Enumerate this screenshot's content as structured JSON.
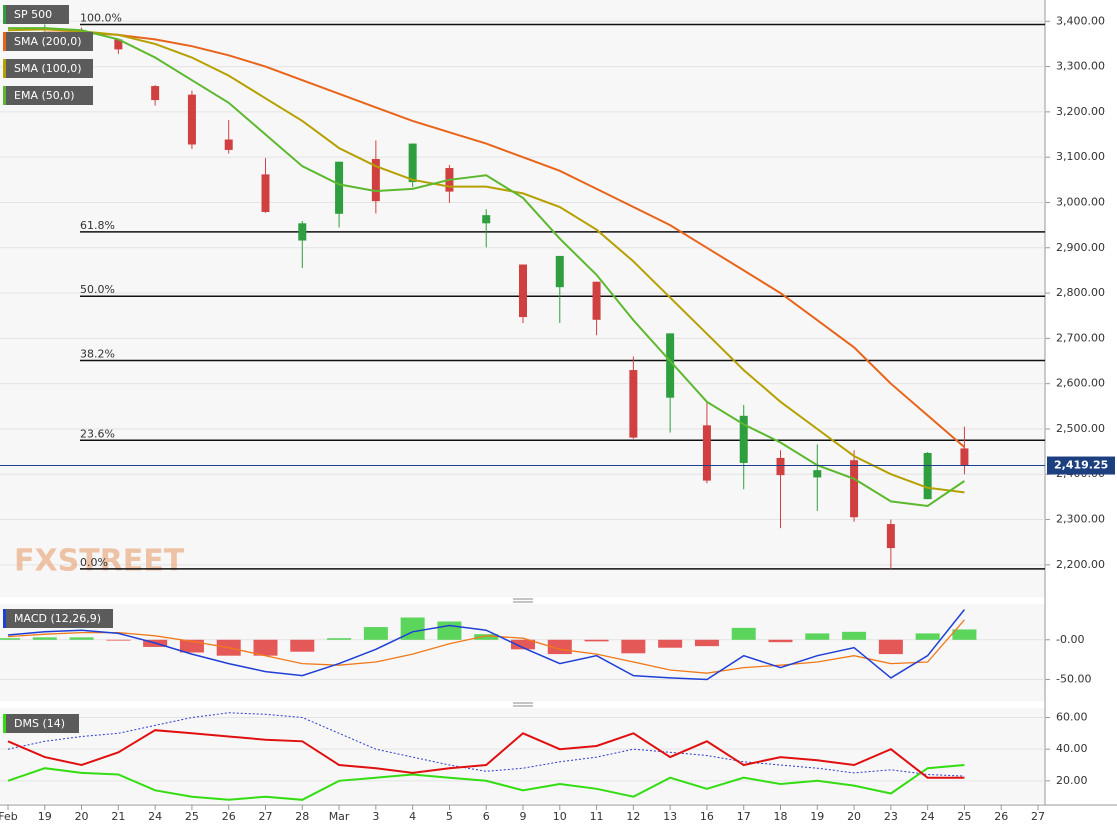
{
  "chart_data": [
    {
      "type": "candlestick",
      "title": "SP 500",
      "categories": [
        "Feb",
        "19",
        "20",
        "21",
        "24",
        "25",
        "26",
        "27",
        "28",
        "Mar",
        "3",
        "4",
        "5",
        "6",
        "9",
        "10",
        "11",
        "12",
        "13",
        "16",
        "17",
        "18",
        "19",
        "20",
        "23",
        "24",
        "25",
        "26",
        "27"
      ],
      "open": [
        3370,
        3380,
        3380,
        3360,
        3257,
        3238,
        3139,
        3062,
        2916,
        2975,
        3096,
        3045,
        3076,
        2954,
        2863,
        2813,
        2825,
        2630,
        2569,
        2508,
        2425,
        2436,
        2393,
        2431,
        2290,
        2345,
        2457,
        null,
        null
      ],
      "high": [
        3375,
        3393,
        3386,
        3361,
        3259,
        3247,
        3182,
        3098,
        2959,
        3090,
        3137,
        3130,
        3083,
        2985,
        2863,
        2882,
        2825,
        2660,
        2711,
        2562,
        2553,
        2453,
        2466,
        2453,
        2300,
        2449,
        2505,
        null,
        null
      ],
      "low": [
        3355,
        3378,
        3350,
        3328,
        3214,
        3118,
        3108,
        2977,
        2855,
        2945,
        2976,
        3034,
        2999,
        2901,
        2734,
        2734,
        2707,
        2478,
        2492,
        2380,
        2367,
        2281,
        2319,
        2295,
        2191,
        2345,
        2400,
        null,
        null
      ],
      "close": [
        3370,
        3386,
        3373,
        3338,
        3226,
        3128,
        3116,
        2979,
        2954,
        3090,
        3003,
        3130,
        3024,
        2972,
        2747,
        2882,
        2741,
        2481,
        2711,
        2386,
        2529,
        2398,
        2409,
        2305,
        2237,
        2447,
        2419.25,
        null,
        null
      ],
      "up_color": "#2e9e3e",
      "down_color": "#d04040",
      "series": [
        {
          "name": "SMA (200,0)",
          "color": "#e8641b",
          "values": [
            3365,
            3375,
            3375,
            3370,
            3360,
            3345,
            3325,
            3300,
            3270,
            3240,
            3210,
            3180,
            3155,
            3130,
            3100,
            3070,
            3030,
            2990,
            2950,
            2900,
            2850,
            2800,
            2740,
            2680,
            2600,
            2530,
            2460,
            null,
            null
          ]
        },
        {
          "name": "SMA (100,0)",
          "color": "#b5a000",
          "values": [
            3380,
            3382,
            3378,
            3370,
            3350,
            3320,
            3280,
            3230,
            3180,
            3120,
            3080,
            3050,
            3035,
            3035,
            3020,
            2990,
            2940,
            2870,
            2790,
            2710,
            2630,
            2560,
            2500,
            2440,
            2400,
            2370,
            2360,
            null,
            null
          ]
        },
        {
          "name": "EMA (50,0)",
          "color": "#5cb82e",
          "values": [
            3385,
            3385,
            3380,
            3360,
            3320,
            3270,
            3220,
            3150,
            3080,
            3040,
            3025,
            3030,
            3050,
            3060,
            3010,
            2920,
            2840,
            2740,
            2650,
            2560,
            2510,
            2470,
            2420,
            2390,
            2340,
            2330,
            2385,
            null,
            null
          ]
        }
      ],
      "levels": [
        {
          "label": "100.0%",
          "value": 3393
        },
        {
          "label": "61.8%",
          "value": 2935
        },
        {
          "label": "50.0%",
          "value": 2793
        },
        {
          "label": "38.2%",
          "value": 2651
        },
        {
          "label": "23.6%",
          "value": 2475
        },
        {
          "label": "0.0%",
          "value": 2191
        }
      ],
      "last_price": {
        "value": 2419.25,
        "label": "2,419.25"
      },
      "watermark": "FXSTREET",
      "ylim": [
        2129,
        3447
      ],
      "yticks": [
        {
          "value": 2200,
          "label": "2,200.00"
        },
        {
          "value": 2300,
          "label": "2,300.00"
        },
        {
          "value": 2400,
          "label": "2,400.00"
        },
        {
          "value": 2500,
          "label": "2,500.00"
        },
        {
          "value": 2600,
          "label": "2,600.00"
        },
        {
          "value": 2700,
          "label": "2,700.00"
        },
        {
          "value": 2800,
          "label": "2,800.00"
        },
        {
          "value": 2900,
          "label": "2,900.00"
        },
        {
          "value": 3000,
          "label": "3,000.00"
        },
        {
          "value": 3100,
          "label": "3,100.00"
        },
        {
          "value": 3200,
          "label": "3,200.00"
        },
        {
          "value": 3300,
          "label": "3,300.00"
        },
        {
          "value": 3400,
          "label": "3,400.00"
        }
      ]
    },
    {
      "type": "macd",
      "title": "MACD (12,26,9)",
      "macd": [
        6,
        10,
        12,
        8,
        -4,
        -18,
        -30,
        -40,
        -45,
        -30,
        -12,
        10,
        18,
        12,
        -10,
        -30,
        -20,
        -45,
        -48,
        -50,
        -20,
        -35,
        -20,
        -10,
        -48,
        -20,
        38,
        null,
        null
      ],
      "signal": [
        4,
        7,
        9,
        9,
        5,
        -2,
        -10,
        -20,
        -30,
        -32,
        -28,
        -18,
        -5,
        5,
        2,
        -12,
        -18,
        -28,
        -38,
        -42,
        -35,
        -32,
        -28,
        -20,
        -30,
        -28,
        25,
        null,
        null
      ],
      "histogram": [
        2,
        3,
        3,
        -1,
        -9,
        -16,
        -20,
        -20,
        -15,
        2,
        16,
        28,
        23,
        7,
        -12,
        -18,
        -2,
        -17,
        -10,
        -8,
        15,
        -3,
        8,
        10,
        -18,
        8,
        13,
        null,
        null
      ],
      "colors": {
        "macd": "#1f3fd6",
        "signal": "#f07a1a",
        "up": "#33cc33",
        "down": "#e03030"
      },
      "ylim": [
        -77,
        45
      ],
      "yticks": [
        {
          "value": 0,
          "label": "-0.00"
        },
        {
          "value": -50,
          "label": "-50.00"
        }
      ]
    },
    {
      "type": "dms",
      "title": "DMS (14)",
      "plus_di": [
        20,
        28,
        25,
        24,
        14,
        10,
        8,
        10,
        8,
        20,
        22,
        24,
        22,
        20,
        14,
        18,
        15,
        10,
        22,
        15,
        22,
        18,
        20,
        17,
        12,
        28,
        30,
        null,
        null
      ],
      "minus_di": [
        45,
        35,
        30,
        38,
        52,
        50,
        48,
        46,
        45,
        30,
        28,
        25,
        28,
        30,
        50,
        40,
        42,
        50,
        35,
        45,
        30,
        35,
        33,
        30,
        40,
        22,
        22,
        null,
        null
      ],
      "adx": [
        40,
        45,
        48,
        50,
        55,
        60,
        63,
        62,
        60,
        50,
        40,
        35,
        30,
        26,
        28,
        32,
        35,
        40,
        38,
        36,
        32,
        30,
        28,
        25,
        27,
        24,
        23,
        null,
        null
      ],
      "colors": {
        "plus_di": "#33dd11",
        "minus_di": "#e01010",
        "adx": "#2a3cc8"
      },
      "ylim": [
        6,
        66
      ],
      "yticks": [
        {
          "value": 20,
          "label": "20.00"
        },
        {
          "value": 40,
          "label": "40.00"
        },
        {
          "value": 60,
          "label": "60.00"
        }
      ]
    }
  ]
}
